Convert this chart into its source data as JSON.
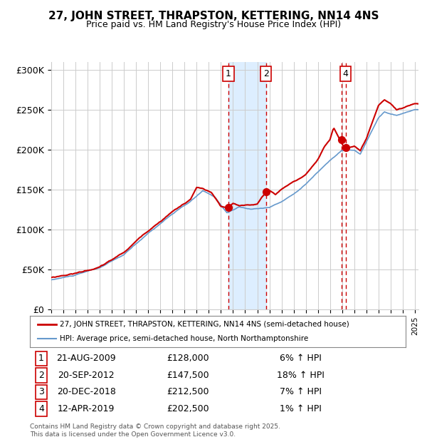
{
  "title": "27, JOHN STREET, THRAPSTON, KETTERING, NN14 4NS",
  "subtitle": "Price paid vs. HM Land Registry's House Price Index (HPI)",
  "legend_line1": "27, JOHN STREET, THRAPSTON, KETTERING, NN14 4NS (semi-detached house)",
  "legend_line2": "HPI: Average price, semi-detached house, North Northamptonshire",
  "footer": "Contains HM Land Registry data © Crown copyright and database right 2025.\nThis data is licensed under the Open Government Licence v3.0.",
  "transactions": [
    {
      "num": 1,
      "date": "21-AUG-2009",
      "price": 128000,
      "hpi_pct": "6%",
      "direction": "↑"
    },
    {
      "num": 2,
      "date": "20-SEP-2012",
      "price": 147500,
      "hpi_pct": "18%",
      "direction": "↑"
    },
    {
      "num": 3,
      "date": "20-DEC-2018",
      "price": 212500,
      "hpi_pct": "7%",
      "direction": "↑"
    },
    {
      "num": 4,
      "date": "12-APR-2019",
      "price": 202500,
      "hpi_pct": "1%",
      "direction": "↑"
    }
  ],
  "hpi_color": "#6699cc",
  "price_color": "#cc0000",
  "dot_color": "#cc0000",
  "vline_color": "#cc0000",
  "shade_color": "#ddeeff",
  "background_color": "#ffffff",
  "grid_color": "#cccccc",
  "ylim": [
    0,
    310000
  ],
  "yticks": [
    0,
    50000,
    100000,
    150000,
    200000,
    250000,
    300000
  ],
  "ytick_labels": [
    "£0",
    "£50K",
    "£100K",
    "£150K",
    "£200K",
    "£250K",
    "£300K"
  ],
  "xstart_year": 1995,
  "xend_year": 2025
}
